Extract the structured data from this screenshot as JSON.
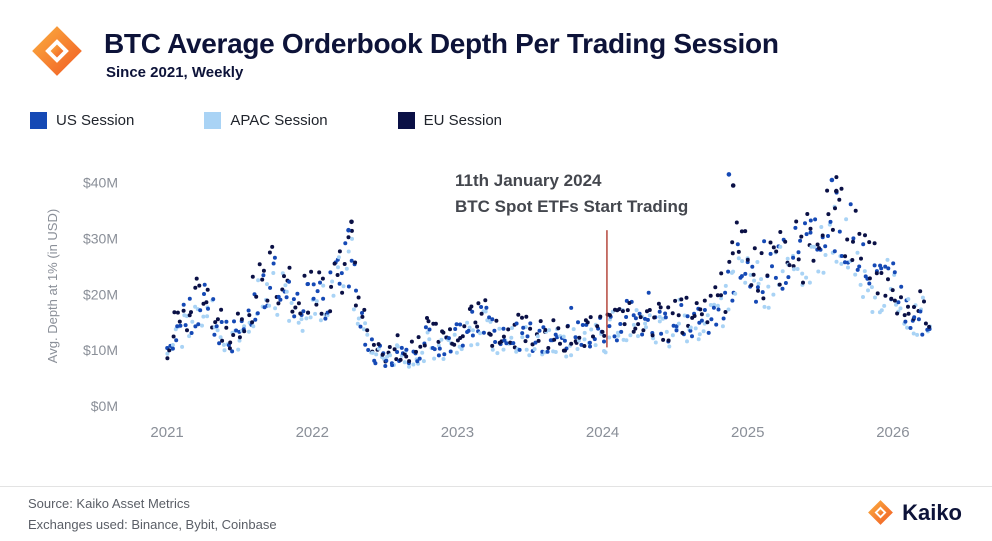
{
  "header": {
    "title": "BTC Average Orderbook Depth Per Trading Session",
    "subtitle": "Since 2021, Weekly"
  },
  "legend": [
    {
      "label": "US Session",
      "color": "#1549B5"
    },
    {
      "label": "APAC Session",
      "color": "#A9D3F5"
    },
    {
      "label": "EU Session",
      "color": "#0A1045"
    }
  ],
  "annotation": {
    "line1": "11th January 2024",
    "line2": "BTC Spot ETFs Start Trading",
    "x": 2024.03,
    "y_from": 10.5,
    "y_to": 31.5,
    "line_color": "#B03A2E"
  },
  "chart_data": {
    "type": "scatter",
    "title": "BTC Average Orderbook Depth Per Trading Session",
    "subtitle": "Since 2021, Weekly",
    "ylabel": "Avg. Depth at 1% (in USD)",
    "xlabel": "",
    "x_ticks": [
      "2021",
      "2022",
      "2023",
      "2024",
      "2025",
      "2026"
    ],
    "x_tick_values": [
      2021,
      2022,
      2023,
      2024,
      2025,
      2026
    ],
    "y_ticks": [
      "$0M",
      "$10M",
      "$20M",
      "$30M",
      "$40M"
    ],
    "y_tick_values": [
      0,
      10,
      20,
      30,
      40
    ],
    "xlim": [
      2020.71,
      2026.29
    ],
    "ylim": [
      0,
      43
    ],
    "x_start": 2021.0,
    "x_end": 2026.25,
    "cadence": "weekly",
    "grid": false,
    "legend_position": "top",
    "seed": 11,
    "jitter": 0.22,
    "outlier_prob": 0.05,
    "outlier_boost": 0.22,
    "series": [
      {
        "name": "US Session",
        "color": "#1549B5",
        "scale": 1.0
      },
      {
        "name": "APAC Session",
        "color": "#A9D3F5",
        "scale": 0.93
      },
      {
        "name": "EU Session",
        "color": "#0A1045",
        "scale": 1.05
      }
    ],
    "draw_order": [
      1,
      0,
      2
    ],
    "median_trend_musd": [
      [
        2021.0,
        10
      ],
      [
        2021.05,
        13
      ],
      [
        2021.15,
        16
      ],
      [
        2021.25,
        19
      ],
      [
        2021.3,
        17
      ],
      [
        2021.4,
        13
      ],
      [
        2021.45,
        12
      ],
      [
        2021.55,
        16
      ],
      [
        2021.65,
        21
      ],
      [
        2021.75,
        23
      ],
      [
        2021.8,
        21
      ],
      [
        2021.9,
        18
      ],
      [
        2022.0,
        19
      ],
      [
        2022.1,
        20
      ],
      [
        2022.2,
        24
      ],
      [
        2022.27,
        27
      ],
      [
        2022.32,
        18
      ],
      [
        2022.4,
        10
      ],
      [
        2022.5,
        8.5
      ],
      [
        2022.6,
        10
      ],
      [
        2022.7,
        9
      ],
      [
        2022.8,
        12
      ],
      [
        2022.9,
        11
      ],
      [
        2023.0,
        12
      ],
      [
        2023.1,
        15
      ],
      [
        2023.2,
        15
      ],
      [
        2023.25,
        13
      ],
      [
        2023.35,
        12.5
      ],
      [
        2023.45,
        13
      ],
      [
        2023.55,
        12
      ],
      [
        2023.65,
        12.5
      ],
      [
        2023.75,
        12
      ],
      [
        2023.85,
        12.5
      ],
      [
        2023.95,
        13
      ],
      [
        2024.03,
        13
      ],
      [
        2024.15,
        16
      ],
      [
        2024.25,
        16
      ],
      [
        2024.35,
        14.5
      ],
      [
        2024.45,
        14
      ],
      [
        2024.55,
        16
      ],
      [
        2024.65,
        15
      ],
      [
        2024.75,
        16
      ],
      [
        2024.85,
        20
      ],
      [
        2024.92,
        27
      ],
      [
        2025.0,
        24
      ],
      [
        2025.1,
        23
      ],
      [
        2025.2,
        25
      ],
      [
        2025.3,
        26
      ],
      [
        2025.4,
        27
      ],
      [
        2025.5,
        30
      ],
      [
        2025.6,
        33
      ],
      [
        2025.68,
        31
      ],
      [
        2025.75,
        28
      ],
      [
        2025.82,
        26
      ],
      [
        2025.9,
        21
      ],
      [
        2026.0,
        21
      ],
      [
        2026.1,
        18
      ],
      [
        2026.2,
        16
      ],
      [
        2026.25,
        15
      ]
    ],
    "notable_outliers": [
      {
        "x": 2022.25,
        "y": 31.5,
        "series": 0
      },
      {
        "x": 2022.27,
        "y": 33.0,
        "series": 2
      },
      {
        "x": 2024.87,
        "y": 41.5,
        "series": 0
      },
      {
        "x": 2024.9,
        "y": 39.5,
        "series": 2
      },
      {
        "x": 2025.58,
        "y": 40.5,
        "series": 0
      },
      {
        "x": 2025.61,
        "y": 38.5,
        "series": 2
      }
    ]
  },
  "footer": {
    "source": "Source: Kaiko Asset Metrics",
    "exchanges": "Exchanges used: Binance, Bybit, Coinbase",
    "brand": "Kaiko"
  }
}
